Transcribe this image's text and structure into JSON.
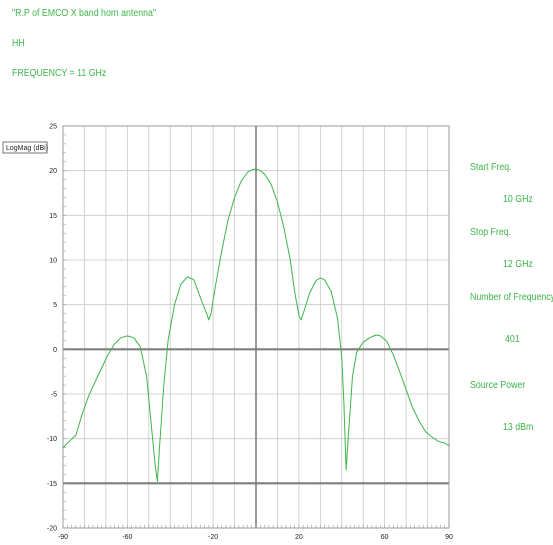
{
  "header": {
    "title": "\"R.P of EMCO X band horn antenna\"",
    "polarization": "HH",
    "frequency": "FREQUENCY = 11 GHz"
  },
  "side_panel": {
    "start_label": "Start Freq.",
    "start_value": "10 GHz",
    "stop_label": "Stop Freq.",
    "stop_value": "12 GHz",
    "points_label": "Number  of Frequency",
    "points_value": "401",
    "power_label": "Source Power",
    "power_value": "13 dBm"
  },
  "colors": {
    "trace": "#3db54a",
    "grid": "#c8c8c8",
    "major_line": "#7f7f7f",
    "text_green": "#3db54a"
  },
  "chart_data": {
    "type": "line",
    "ylabel": "LogMag (dBi)",
    "xlim": [
      -90,
      90
    ],
    "ylim": [
      -20,
      25
    ],
    "x_ticks": [
      -90,
      -60,
      -20,
      20,
      60,
      90
    ],
    "y_ticks": [
      25,
      20,
      15,
      10,
      5,
      0,
      -5,
      -10,
      -15,
      -20
    ],
    "grid": true,
    "series": [
      {
        "values": [
          [
            -90,
            -11
          ],
          [
            -87,
            -10.3
          ],
          [
            -84,
            -9.6
          ],
          [
            -81,
            -7.2
          ],
          [
            -78,
            -5.2
          ],
          [
            -75,
            -3.6
          ],
          [
            -72,
            -2.1
          ],
          [
            -69,
            -0.6
          ],
          [
            -66,
            0.6
          ],
          [
            -63,
            1.3
          ],
          [
            -60,
            1.5
          ],
          [
            -57,
            1.3
          ],
          [
            -54,
            0.3
          ],
          [
            -51,
            -3
          ],
          [
            -49,
            -8
          ],
          [
            -47,
            -13
          ],
          [
            -46,
            -14.8
          ],
          [
            -45,
            -11
          ],
          [
            -43,
            -4
          ],
          [
            -41,
            1
          ],
          [
            -38,
            5
          ],
          [
            -35,
            7.3
          ],
          [
            -32,
            8.1
          ],
          [
            -29,
            7.8
          ],
          [
            -27,
            6.5
          ],
          [
            -25,
            5.2
          ],
          [
            -23,
            4
          ],
          [
            -22,
            3.3
          ],
          [
            -21,
            4
          ],
          [
            -19,
            7
          ],
          [
            -16,
            11
          ],
          [
            -13,
            14.5
          ],
          [
            -10,
            17
          ],
          [
            -7,
            18.8
          ],
          [
            -4,
            19.8
          ],
          [
            -2,
            20.1
          ],
          [
            0,
            20.2
          ],
          [
            2,
            20
          ],
          [
            4,
            19.6
          ],
          [
            7,
            18.5
          ],
          [
            10,
            16.5
          ],
          [
            13,
            13.6
          ],
          [
            16,
            10
          ],
          [
            18,
            6.5
          ],
          [
            20,
            3.8
          ],
          [
            21,
            3.3
          ],
          [
            22,
            4
          ],
          [
            25,
            6.3
          ],
          [
            28,
            7.7
          ],
          [
            30,
            8
          ],
          [
            32,
            7.8
          ],
          [
            35,
            6.5
          ],
          [
            38,
            3.5
          ],
          [
            40,
            -1
          ],
          [
            41,
            -6
          ],
          [
            42,
            -13.5
          ],
          [
            43,
            -10
          ],
          [
            45,
            -3
          ],
          [
            47,
            -0.3
          ],
          [
            50,
            0.8
          ],
          [
            53,
            1.3
          ],
          [
            56,
            1.6
          ],
          [
            58,
            1.5
          ],
          [
            61,
            0.9
          ],
          [
            64,
            -0.6
          ],
          [
            67,
            -2.5
          ],
          [
            70,
            -4.5
          ],
          [
            73,
            -6.5
          ],
          [
            76,
            -8
          ],
          [
            79,
            -9.2
          ],
          [
            82,
            -9.8
          ],
          [
            85,
            -10.3
          ],
          [
            88,
            -10.5
          ],
          [
            90,
            -10.8
          ]
        ]
      }
    ]
  }
}
